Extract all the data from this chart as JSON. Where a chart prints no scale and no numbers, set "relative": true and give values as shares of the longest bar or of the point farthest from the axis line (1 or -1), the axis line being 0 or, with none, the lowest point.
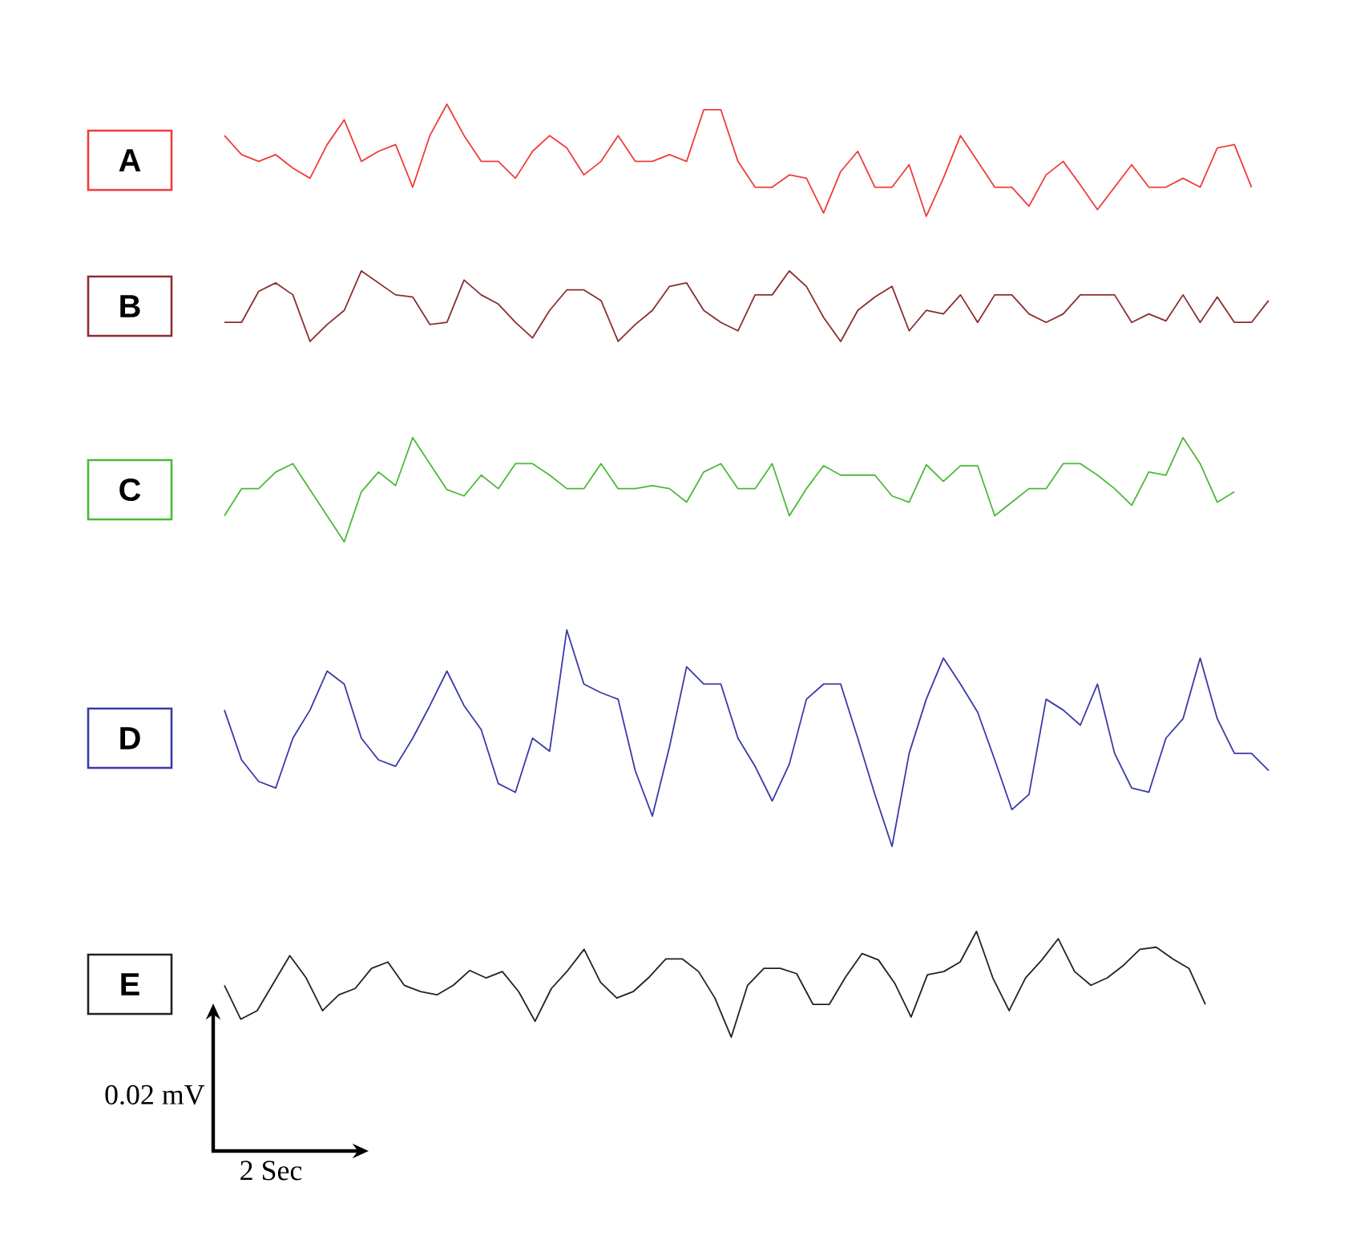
{
  "chart_data": [
    {
      "type": "line",
      "relative": true,
      "categories": [
        null,
        null,
        null,
        null,
        null,
        null,
        null,
        null,
        null,
        null,
        null,
        null,
        null,
        null,
        null,
        null,
        null,
        null,
        null,
        null,
        null,
        null,
        null,
        null,
        null,
        null,
        null,
        null,
        null,
        null,
        null,
        null,
        null,
        null,
        null,
        null,
        null,
        null,
        null,
        null,
        null,
        null,
        null,
        null,
        null,
        null,
        null,
        null,
        null,
        null,
        null,
        null,
        null,
        null,
        null,
        null,
        null,
        null,
        null,
        null,
        null
      ],
      "series": [
        {
          "name": "A",
          "color": "#f03c3c",
          "values": [
            0.72,
            0.55,
            0.49,
            0.55,
            0.43,
            0.34,
            0.64,
            0.86,
            0.49,
            0.58,
            0.64,
            0.26,
            0.72,
            1.0,
            0.72,
            0.49,
            0.49,
            0.34,
            0.58,
            0.72,
            0.61,
            0.37,
            0.49,
            0.72,
            0.49,
            0.49,
            0.55,
            0.49,
            0.95,
            0.95,
            0.49,
            0.26,
            0.26,
            0.37,
            0.34,
            0.03,
            0.4,
            0.58,
            0.26,
            0.26,
            0.46,
            0.0,
            0.34,
            0.72,
            0.49,
            0.26,
            0.26,
            0.09,
            0.37,
            0.49,
            0.28,
            0.06,
            0.26,
            0.46,
            0.26,
            0.26,
            0.34,
            0.26,
            0.61,
            0.64,
            0.26
          ]
        }
      ]
    },
    {
      "type": "line",
      "relative": true,
      "categories": [
        null,
        null,
        null,
        null,
        null,
        null,
        null,
        null,
        null,
        null,
        null,
        null,
        null,
        null,
        null,
        null,
        null,
        null,
        null,
        null,
        null,
        null,
        null,
        null,
        null,
        null,
        null,
        null,
        null,
        null,
        null,
        null,
        null,
        null,
        null,
        null,
        null,
        null,
        null,
        null,
        null,
        null,
        null,
        null,
        null,
        null,
        null,
        null,
        null,
        null,
        null,
        null,
        null,
        null,
        null,
        null,
        null,
        null,
        null,
        null,
        null,
        null
      ],
      "series": [
        {
          "name": "B",
          "color": "#8b2e2e",
          "values": [
            0.27,
            0.27,
            0.71,
            0.83,
            0.66,
            0.0,
            0.24,
            0.44,
            1.0,
            0.83,
            0.66,
            0.63,
            0.24,
            0.27,
            0.87,
            0.66,
            0.53,
            0.27,
            0.05,
            0.44,
            0.73,
            0.73,
            0.58,
            0.0,
            0.24,
            0.44,
            0.78,
            0.83,
            0.44,
            0.27,
            0.15,
            0.66,
            0.66,
            1.0,
            0.78,
            0.34,
            0.0,
            0.44,
            0.63,
            0.78,
            0.15,
            0.44,
            0.39,
            0.66,
            0.27,
            0.66,
            0.66,
            0.39,
            0.27,
            0.39,
            0.66,
            0.66,
            0.66,
            0.27,
            0.39,
            0.29,
            0.66,
            0.27,
            0.63,
            0.27,
            0.27,
            0.58
          ]
        }
      ]
    },
    {
      "type": "line",
      "relative": true,
      "categories": [
        null,
        null,
        null,
        null,
        null,
        null,
        null,
        null,
        null,
        null,
        null,
        null,
        null,
        null,
        null,
        null,
        null,
        null,
        null,
        null,
        null,
        null,
        null,
        null,
        null,
        null,
        null,
        null,
        null,
        null,
        null,
        null,
        null,
        null,
        null,
        null,
        null,
        null,
        null,
        null,
        null,
        null,
        null,
        null,
        null,
        null,
        null,
        null,
        null,
        null,
        null,
        null,
        null,
        null,
        null,
        null,
        null,
        null,
        null,
        null
      ],
      "series": [
        {
          "name": "C",
          "color": "#4cb83a",
          "values": [
            0.25,
            0.51,
            0.51,
            0.67,
            0.75,
            0.5,
            0.25,
            0.0,
            0.48,
            0.67,
            0.54,
            1.0,
            0.75,
            0.5,
            0.44,
            0.64,
            0.51,
            0.75,
            0.75,
            0.64,
            0.51,
            0.51,
            0.75,
            0.51,
            0.51,
            0.54,
            0.51,
            0.38,
            0.67,
            0.75,
            0.51,
            0.51,
            0.75,
            0.25,
            0.51,
            0.73,
            0.64,
            0.64,
            0.64,
            0.44,
            0.38,
            0.74,
            0.58,
            0.73,
            0.73,
            0.25,
            0.38,
            0.51,
            0.51,
            0.75,
            0.75,
            0.64,
            0.51,
            0.35,
            0.67,
            0.64,
            1.0,
            0.75,
            0.38,
            0.48
          ]
        }
      ]
    },
    {
      "type": "line",
      "relative": true,
      "categories": [
        null,
        null,
        null,
        null,
        null,
        null,
        null,
        null,
        null,
        null,
        null,
        null,
        null,
        null,
        null,
        null,
        null,
        null,
        null,
        null,
        null,
        null,
        null,
        null,
        null,
        null,
        null,
        null,
        null,
        null,
        null,
        null,
        null,
        null,
        null,
        null,
        null,
        null,
        null,
        null,
        null,
        null,
        null,
        null,
        null,
        null,
        null,
        null,
        null,
        null,
        null,
        null,
        null,
        null,
        null,
        null,
        null,
        null,
        null,
        null,
        null,
        null
      ],
      "series": [
        {
          "name": "D",
          "color": "#3a3aa8",
          "values": [
            0.63,
            0.4,
            0.3,
            0.27,
            0.5,
            0.63,
            0.81,
            0.75,
            0.5,
            0.4,
            0.37,
            0.5,
            0.65,
            0.81,
            0.65,
            0.54,
            0.29,
            0.25,
            0.5,
            0.44,
            1.0,
            0.75,
            0.71,
            0.68,
            0.35,
            0.14,
            0.46,
            0.83,
            0.75,
            0.75,
            0.5,
            0.37,
            0.21,
            0.38,
            0.68,
            0.75,
            0.75,
            0.5,
            0.24,
            0.0,
            0.43,
            0.68,
            0.87,
            0.75,
            0.62,
            0.4,
            0.17,
            0.24,
            0.68,
            0.63,
            0.56,
            0.75,
            0.43,
            0.27,
            0.25,
            0.5,
            0.59,
            0.87,
            0.59,
            0.43,
            0.43,
            0.35
          ]
        }
      ]
    },
    {
      "type": "line",
      "relative": true,
      "categories": [
        null,
        null,
        null,
        null,
        null,
        null,
        null,
        null,
        null,
        null,
        null,
        null,
        null,
        null,
        null,
        null,
        null,
        null,
        null,
        null,
        null,
        null,
        null,
        null,
        null,
        null,
        null,
        null,
        null,
        null,
        null,
        null,
        null,
        null,
        null,
        null,
        null,
        null,
        null,
        null,
        null,
        null,
        null,
        null,
        null,
        null,
        null,
        null,
        null,
        null,
        null,
        null,
        null,
        null,
        null,
        null,
        null,
        null,
        null,
        null,
        null
      ],
      "series": [
        {
          "name": "E",
          "color": "#222222",
          "values": [
            0.49,
            0.17,
            0.25,
            0.51,
            0.77,
            0.56,
            0.25,
            0.4,
            0.46,
            0.65,
            0.71,
            0.49,
            0.43,
            0.4,
            0.49,
            0.63,
            0.56,
            0.62,
            0.43,
            0.15,
            0.46,
            0.63,
            0.83,
            0.52,
            0.37,
            0.43,
            0.57,
            0.74,
            0.74,
            0.62,
            0.37,
            0.0,
            0.49,
            0.65,
            0.65,
            0.6,
            0.31,
            0.31,
            0.57,
            0.79,
            0.73,
            0.51,
            0.19,
            0.59,
            0.62,
            0.71,
            1.0,
            0.56,
            0.25,
            0.56,
            0.73,
            0.93,
            0.62,
            0.49,
            0.56,
            0.68,
            0.83,
            0.85,
            0.74,
            0.65,
            0.31
          ]
        }
      ],
      "annotations": [
        "0.02 mV",
        "2 Sec"
      ]
    }
  ]
}
